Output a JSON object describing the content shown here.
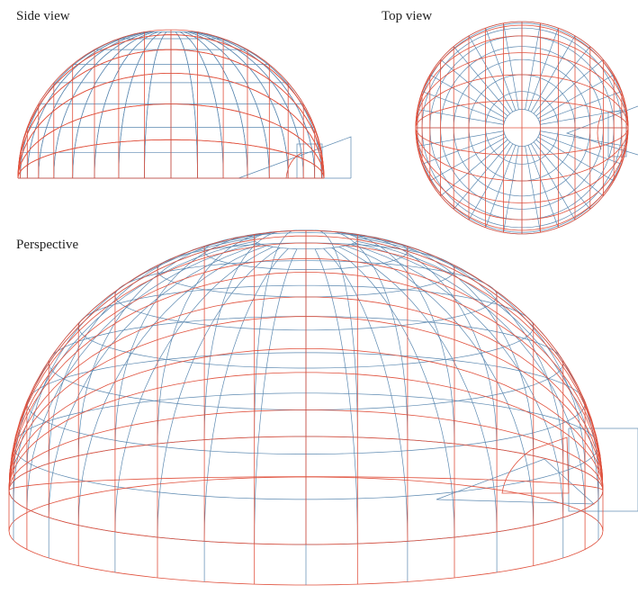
{
  "labels": {
    "side": "Side view",
    "top": "Top view",
    "perspective": "Perspective"
  }
}
